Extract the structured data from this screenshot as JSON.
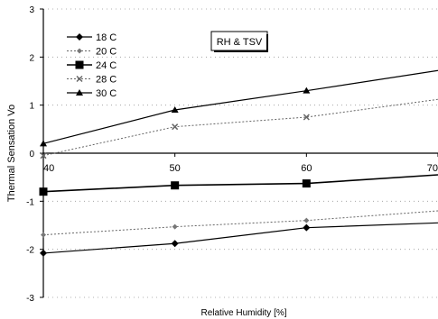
{
  "chart_data": {
    "type": "line",
    "ylabel": "Thermal Sensation Vo",
    "xlabel": "Relative Humidity [%]",
    "annotation": "RH & TSV",
    "x": [
      40,
      50,
      60,
      70
    ],
    "x_tick_labels": [
      "40",
      "50",
      "60",
      "70"
    ],
    "y_tick_labels": [
      "3",
      "2",
      "1",
      "0",
      "-1",
      "-2",
      "-3"
    ],
    "xlim": [
      40,
      70
    ],
    "ylim": [
      -3,
      3
    ],
    "grid": "dotted horizontal",
    "legend_position": "top-left",
    "series": [
      {
        "name": "18 C",
        "marker": "diamond",
        "dash": "solid",
        "values": [
          -2.08,
          -1.88,
          -1.55,
          -1.45
        ]
      },
      {
        "name": "20 C",
        "marker": "small-diamond",
        "dash": "dotted",
        "values": [
          -1.7,
          -1.53,
          -1.4,
          -1.2
        ]
      },
      {
        "name": "24 C",
        "marker": "square",
        "dash": "solid",
        "values": [
          -0.8,
          -0.67,
          -0.63,
          -0.45
        ]
      },
      {
        "name": "28 C",
        "marker": "x",
        "dash": "dotted",
        "values": [
          -0.05,
          0.55,
          0.75,
          1.12
        ]
      },
      {
        "name": "30 C",
        "marker": "triangle",
        "dash": "solid",
        "values": [
          0.2,
          0.9,
          1.3,
          1.72
        ]
      }
    ]
  }
}
